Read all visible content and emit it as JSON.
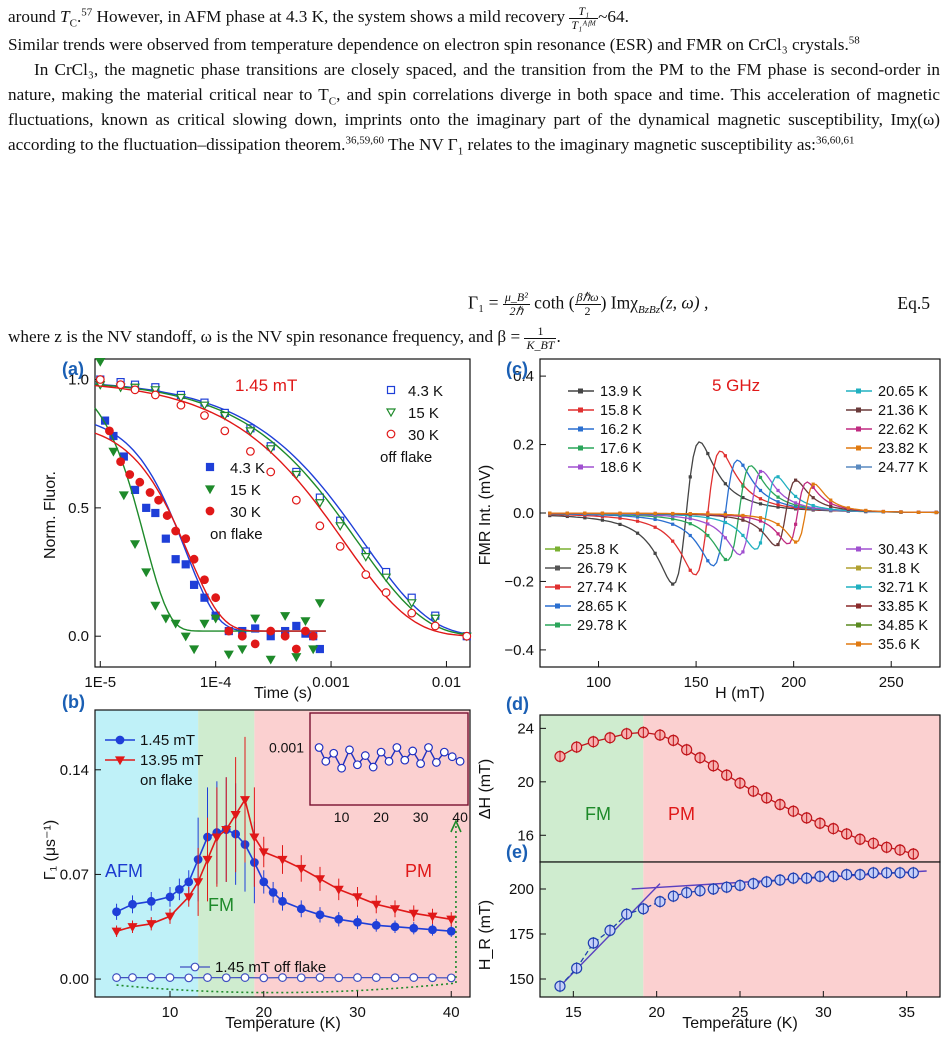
{
  "text": {
    "p0_a": "around ",
    "p0_tc": "T",
    "p0_tc_sub": "C",
    "p0_b": ".",
    "p0_ref1": "57",
    "p0_c": " However, in AFM phase at 4.3 K, the system shows a mild recovery ",
    "p0_frac_num": "T₁",
    "p0_frac_den": "T₁ᴬᶠᴹ",
    "p0_d": "~64.",
    "p1": "Similar trends were observed from temperature dependence on electron spin resonance (ESR) and FMR on CrCl₃ crystals.",
    "p1_ref": "58",
    "p2_a": "In CrCl₃, the magnetic phase transitions are closely spaced, and the transition from the PM to the FM phase is second-order in nature, making the material critical near to T",
    "p2_sub": "C",
    "p2_b": ", and spin correlations diverge in both space and time. This acceleration of magnetic fluctuations, known as critical slowing down, imprints onto the imaginary part of the dynamical magnetic susceptibility, Imχ(ω) according to the fluctuation–dissipation theorem.",
    "p2_ref1": "36,59,60",
    "p2_c": " The NV Γ",
    "p2_c_sub": "1",
    "p2_d": " relates to the imaginary magnetic susceptibility as:",
    "p2_ref2": "36,60,61",
    "eq_lhs": "Γ₁ = ",
    "eq_frac1_num": "μ_B²",
    "eq_frac1_den": "2ℏ",
    "eq_coth": " coth ",
    "eq_frac2_num": "βℏω",
    "eq_frac2_den": "2",
    "eq_rhs": " Imχ",
    "eq_rhs_sub": "BzBz",
    "eq_rhs2": "(z, ω) ,",
    "eq_num": "Eq.5",
    "p3_a": "where z is the NV standoff, ω is the NV spin resonance frequency, and β = ",
    "p3_frac_num": "1",
    "p3_frac_den": "K_BT",
    "p3_b": "."
  },
  "figure": {
    "panel_a": {
      "label": "(a)",
      "field": "1.45 mT",
      "xlabel": "Time (s)",
      "ylabel": "Norm. Fluor.",
      "xticks": [
        "1E-5",
        "1E-4",
        "0.001",
        "0.01"
      ],
      "yticks": [
        "0.0",
        "0.5",
        "1.0"
      ],
      "off_legend": [
        "4.3 K",
        "15 K",
        "30 K"
      ],
      "off_label": "off flake",
      "on_legend": [
        "4.3 K",
        "15 K",
        "30 K"
      ],
      "on_label": "on flake",
      "colors": [
        "#1f3fd8",
        "#1e8a2a",
        "#e01818"
      ]
    },
    "panel_b": {
      "label": "(b)",
      "xlabel": "Temperature (K)",
      "ylabel": "Γ₁ (μs⁻¹)",
      "xticks": [
        "10",
        "20",
        "30",
        "40"
      ],
      "yticks": [
        "0.00",
        "0.07",
        "0.14"
      ],
      "legend": [
        "1.45 mT",
        "13.95 mT"
      ],
      "on_label": "on flake",
      "off_legend": "1.45 mT off flake",
      "regions": [
        "AFM",
        "FM",
        "PM"
      ],
      "inset_ytick": "0.001",
      "inset_xticks": [
        "10",
        "20",
        "30",
        "40"
      ]
    },
    "panel_c": {
      "label": "(c)",
      "freq": "5 GHz",
      "xlabel": "H (mT)",
      "ylabel": "FMR Int. (mV)",
      "xticks": [
        "100",
        "150",
        "200",
        "250"
      ],
      "yticks": [
        "-0.4",
        "-0.2",
        "0.0",
        "0.2",
        "0.4"
      ],
      "legend_left_top": [
        "13.9 K",
        "15.8 K",
        "16.2 K",
        "17.6 K",
        "18.6 K"
      ],
      "legend_right_top": [
        "20.65 K",
        "21.36 K",
        "22.62 K",
        "23.82 K",
        "24.77 K"
      ],
      "legend_left_bottom": [
        "25.8 K",
        "26.79 K",
        "27.74 K",
        "28.65 K",
        "29.78 K"
      ],
      "legend_right_bottom": [
        "30.43 K",
        "31.8 K",
        "32.71 K",
        "33.85 K",
        "34.85 K",
        "35.6 K"
      ]
    },
    "panel_d": {
      "label": "(d)",
      "ylabel": "ΔH (mT)",
      "yticks": [
        "16",
        "20",
        "24"
      ],
      "regions": [
        "FM",
        "PM"
      ]
    },
    "panel_e": {
      "label": "(e)",
      "ylabel": "H_R (mT)",
      "xlabel": "Temperature (K)",
      "xticks": [
        "15",
        "20",
        "25",
        "30",
        "35"
      ],
      "yticks": [
        "150",
        "175",
        "200"
      ]
    }
  },
  "chart_data": [
    {
      "type": "scatter",
      "title": "",
      "xlabel": "Time (s)",
      "ylabel": "Norm. Fluor.",
      "xscale": "log",
      "xlim": [
        9e-06,
        0.016
      ],
      "ylim": [
        -0.12,
        1.08
      ],
      "series": [
        {
          "name": "4.3 K off flake",
          "x": [
            1e-05,
            1.5e-05,
            2e-05,
            3e-05,
            5e-05,
            8e-05,
            0.00012,
            0.0002,
            0.0003,
            0.0005,
            0.0008,
            0.0012,
            0.002,
            0.003,
            0.005,
            0.008,
            0.015
          ],
          "y": [
            1.0,
            0.99,
            0.98,
            0.97,
            0.94,
            0.91,
            0.87,
            0.81,
            0.74,
            0.64,
            0.54,
            0.45,
            0.33,
            0.25,
            0.15,
            0.08,
            0.0
          ]
        },
        {
          "name": "15 K off flake",
          "x": [
            1e-05,
            1.5e-05,
            2e-05,
            3e-05,
            5e-05,
            8e-05,
            0.00012,
            0.0002,
            0.0003,
            0.0005,
            0.0008,
            0.0012,
            0.002,
            0.003,
            0.005,
            0.008,
            0.015
          ],
          "y": [
            0.98,
            0.97,
            0.97,
            0.96,
            0.93,
            0.9,
            0.86,
            0.8,
            0.73,
            0.63,
            0.52,
            0.43,
            0.31,
            0.23,
            0.13,
            0.07,
            0.0
          ]
        },
        {
          "name": "30 K off flake",
          "x": [
            1e-05,
            1.5e-05,
            2e-05,
            3e-05,
            5e-05,
            8e-05,
            0.00012,
            0.0002,
            0.0003,
            0.0005,
            0.0008,
            0.0012,
            0.002,
            0.003,
            0.005,
            0.008,
            0.015
          ],
          "y": [
            1.0,
            0.98,
            0.96,
            0.94,
            0.9,
            0.86,
            0.8,
            0.72,
            0.64,
            0.53,
            0.43,
            0.35,
            0.24,
            0.17,
            0.09,
            0.04,
            0.0
          ]
        },
        {
          "name": "4.3 K on flake",
          "x": [
            1.1e-05,
            1.3e-05,
            1.6e-05,
            2e-05,
            2.5e-05,
            3e-05,
            3.7e-05,
            4.5e-05,
            5.5e-05,
            6.5e-05,
            8e-05,
            0.0001,
            0.00013,
            0.00017,
            0.00022,
            0.0003,
            0.0004,
            0.0005,
            0.0006,
            0.0007,
            0.0008
          ],
          "y": [
            0.84,
            0.78,
            0.7,
            0.57,
            0.5,
            0.48,
            0.38,
            0.3,
            0.28,
            0.2,
            0.15,
            0.08,
            0.02,
            0.02,
            0.03,
            0.0,
            0.02,
            0.04,
            0.01,
            0.0,
            -0.05
          ]
        },
        {
          "name": "15 K on flake",
          "x": [
            1e-05,
            1.3e-05,
            1.6e-05,
            2e-05,
            2.5e-05,
            3e-05,
            3.7e-05,
            4.5e-05,
            5.5e-05,
            6.5e-05,
            8e-05,
            0.0001,
            0.00013,
            0.00017,
            0.00022,
            0.0003,
            0.0004,
            0.0005,
            0.0006,
            0.0007,
            0.0008
          ],
          "y": [
            1.07,
            0.72,
            0.55,
            0.36,
            0.25,
            0.12,
            0.07,
            0.05,
            0.0,
            -0.05,
            0.05,
            0.07,
            -0.07,
            -0.05,
            0.07,
            -0.09,
            0.08,
            -0.08,
            0.06,
            -0.05,
            0.13
          ]
        },
        {
          "name": "30 K on flake",
          "x": [
            1.2e-05,
            1.5e-05,
            1.8e-05,
            2.2e-05,
            2.7e-05,
            3.2e-05,
            3.8e-05,
            4.5e-05,
            5.5e-05,
            6.5e-05,
            8e-05,
            0.0001,
            0.00013,
            0.00017,
            0.00022,
            0.0003,
            0.0004,
            0.0005,
            0.0006,
            0.0007
          ],
          "y": [
            0.8,
            0.68,
            0.63,
            0.6,
            0.56,
            0.53,
            0.47,
            0.41,
            0.38,
            0.3,
            0.22,
            0.15,
            0.02,
            0.0,
            -0.03,
            0.02,
            0.0,
            -0.05,
            0.02,
            0.0
          ]
        }
      ]
    },
    {
      "type": "line",
      "title": "",
      "xlabel": "Temperature (K)",
      "ylabel": "Γ₁ (μs⁻¹)",
      "xlim": [
        2,
        42
      ],
      "ylim": [
        -0.012,
        0.18
      ],
      "series": [
        {
          "name": "1.45 mT",
          "x": [
            4.3,
            6,
            8,
            10,
            11,
            12,
            13,
            14,
            15,
            16,
            17,
            18,
            19,
            20,
            21,
            22,
            24,
            26,
            28,
            30,
            32,
            34,
            36,
            38,
            40
          ],
          "y": [
            0.045,
            0.05,
            0.052,
            0.055,
            0.06,
            0.065,
            0.08,
            0.095,
            0.098,
            0.1,
            0.097,
            0.09,
            0.078,
            0.065,
            0.058,
            0.052,
            0.047,
            0.043,
            0.04,
            0.038,
            0.036,
            0.035,
            0.034,
            0.033,
            0.032
          ]
        },
        {
          "name": "13.95 mT",
          "x": [
            4.3,
            6,
            8,
            10,
            12,
            13,
            14,
            15,
            16,
            17,
            18,
            19,
            20,
            22,
            24,
            26,
            28,
            30,
            32,
            34,
            36,
            38,
            40
          ],
          "y": [
            0.032,
            0.035,
            0.037,
            0.042,
            0.055,
            0.065,
            0.08,
            0.095,
            0.1,
            0.11,
            0.12,
            0.095,
            0.085,
            0.08,
            0.074,
            0.067,
            0.06,
            0.055,
            0.05,
            0.047,
            0.044,
            0.042,
            0.04
          ]
        },
        {
          "name": "1.45 mT off flake",
          "x": [
            4.3,
            6,
            8,
            10,
            12,
            14,
            16,
            18,
            20,
            22,
            24,
            26,
            28,
            30,
            32,
            34,
            36,
            38,
            40
          ],
          "y": [
            0.001,
            0.001,
            0.001,
            0.001,
            0.0008,
            0.001,
            0.0009,
            0.001,
            0.0008,
            0.001,
            0.0009,
            0.001,
            0.0009,
            0.001,
            0.001,
            0.0009,
            0.001,
            0.0009,
            0.0008
          ]
        }
      ]
    },
    {
      "type": "line",
      "title": "",
      "xlabel": "H (mT)",
      "ylabel": "FMR Int. (mV)",
      "xlim": [
        70,
        275
      ],
      "ylim": [
        -0.45,
        0.45
      ],
      "series": [
        {
          "name": "13.9 K",
          "center": 145,
          "amplitude": 0.39
        },
        {
          "name": "15.8 K",
          "center": 156,
          "amplitude": 0.34
        },
        {
          "name": "16.2 K",
          "center": 165,
          "amplitude": 0.29
        },
        {
          "name": "17.6 K",
          "center": 172,
          "amplitude": 0.26
        },
        {
          "name": "18.6 K",
          "center": 178,
          "amplitude": 0.23
        },
        {
          "name": "20.65 K",
          "center": 186,
          "amplitude": 0.2
        },
        {
          "name": "24.77 K",
          "center": 196,
          "amplitude": 0.18
        },
        {
          "name": "29.78 K",
          "center": 202,
          "amplitude": 0.17
        },
        {
          "name": "35.6 K",
          "center": 206,
          "amplitude": 0.16
        }
      ]
    },
    {
      "type": "scatter",
      "title": "",
      "xlabel": "Temperature (K)",
      "ylabel": "ΔH (mT)",
      "xlim": [
        13,
        37
      ],
      "ylim": [
        14,
        25
      ],
      "x": [
        14.2,
        15.2,
        16.2,
        17.2,
        18.2,
        19.2,
        20.2,
        21.0,
        21.8,
        22.6,
        23.4,
        24.2,
        25.0,
        25.8,
        26.6,
        27.4,
        28.2,
        29.0,
        29.8,
        30.6,
        31.4,
        32.2,
        33.0,
        33.8,
        34.6,
        35.4
      ],
      "y": [
        21.9,
        22.6,
        23.0,
        23.3,
        23.6,
        23.7,
        23.5,
        23.1,
        22.4,
        21.8,
        21.2,
        20.5,
        19.9,
        19.3,
        18.8,
        18.3,
        17.8,
        17.3,
        16.9,
        16.5,
        16.1,
        15.7,
        15.4,
        15.1,
        14.9,
        14.6
      ]
    },
    {
      "type": "scatter",
      "title": "",
      "xlabel": "Temperature (K)",
      "ylabel": "H_R (mT)",
      "xlim": [
        13,
        37
      ],
      "ylim": [
        140,
        215
      ],
      "x": [
        14.2,
        15.2,
        16.2,
        17.2,
        18.2,
        19.2,
        20.2,
        21.0,
        21.8,
        22.6,
        23.4,
        24.2,
        25.0,
        25.8,
        26.6,
        27.4,
        28.2,
        29.0,
        29.8,
        30.6,
        31.4,
        32.2,
        33.0,
        33.8,
        34.6,
        35.4
      ],
      "y": [
        146,
        156,
        170,
        177,
        186,
        189,
        193,
        196,
        198,
        199,
        200,
        201,
        202,
        203,
        204,
        205,
        206,
        206,
        207,
        207,
        208,
        208,
        209,
        209,
        209,
        209
      ]
    }
  ]
}
